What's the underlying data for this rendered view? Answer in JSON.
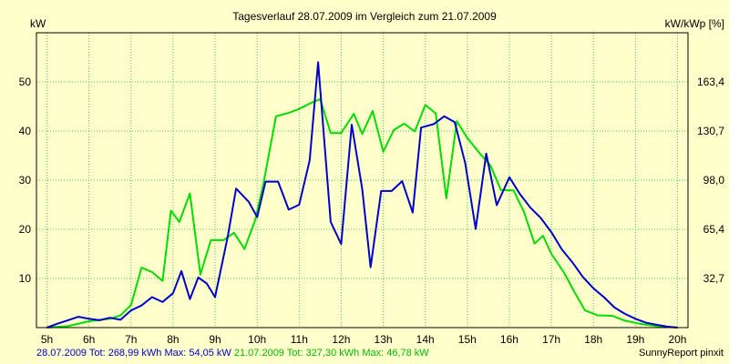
{
  "chart_data": {
    "type": "line",
    "title": "Tagesverlauf 28.07.2009 im Vergleich zum 21.07.2009",
    "ylabel": "kW",
    "y2label": "kW/kWp [%]",
    "ylim": [
      0,
      60
    ],
    "y2lim": [
      0,
      196
    ],
    "xlim": [
      4.75,
      20.25
    ],
    "x_ticks": [
      5,
      6,
      7,
      8,
      9,
      10,
      11,
      12,
      13,
      14,
      15,
      16,
      17,
      18,
      19,
      20
    ],
    "x_tick_labels": [
      "5h",
      "6h",
      "7h",
      "8h",
      "9h",
      "10h",
      "11h",
      "12h",
      "13h",
      "14h",
      "15h",
      "16h",
      "17h",
      "18h",
      "19h",
      "20h"
    ],
    "y_ticks": [
      10,
      20,
      30,
      40,
      50
    ],
    "y_tick_labels": [
      "10",
      "20",
      "30",
      "40",
      "50"
    ],
    "y2_tick_labels": [
      "32,7",
      "65,4",
      "98,0",
      "130,7",
      "163,4"
    ],
    "grid": true,
    "series": [
      {
        "name": "28.07.2009",
        "color": "#0000cc",
        "points": [
          [
            5,
            0
          ],
          [
            5.25,
            0.8
          ],
          [
            5.5,
            1.5
          ],
          [
            5.75,
            2.2
          ],
          [
            6,
            1.8
          ],
          [
            6.25,
            1.5
          ],
          [
            6.5,
            2
          ],
          [
            6.75,
            1.6
          ],
          [
            7,
            3.5
          ],
          [
            7.25,
            4.5
          ],
          [
            7.5,
            6.2
          ],
          [
            7.75,
            5.2
          ],
          [
            8,
            7
          ],
          [
            8.2,
            11.5
          ],
          [
            8.4,
            5.8
          ],
          [
            8.6,
            10.2
          ],
          [
            8.8,
            9
          ],
          [
            9,
            6.2
          ],
          [
            9.3,
            18.5
          ],
          [
            9.5,
            28.3
          ],
          [
            9.8,
            25.6
          ],
          [
            10,
            22.5
          ],
          [
            10.2,
            29.7
          ],
          [
            10.5,
            29.7
          ],
          [
            10.75,
            24
          ],
          [
            11,
            25
          ],
          [
            11.25,
            34
          ],
          [
            11.45,
            54
          ],
          [
            11.75,
            21.5
          ],
          [
            12,
            17
          ],
          [
            12.25,
            41.3
          ],
          [
            12.5,
            28.2
          ],
          [
            12.7,
            12.3
          ],
          [
            12.95,
            27.8
          ],
          [
            13.2,
            27.8
          ],
          [
            13.45,
            29.8
          ],
          [
            13.7,
            23.4
          ],
          [
            13.9,
            40.7
          ],
          [
            14.2,
            41.4
          ],
          [
            14.45,
            43
          ],
          [
            14.7,
            41.8
          ],
          [
            14.95,
            33.5
          ],
          [
            15.2,
            20.1
          ],
          [
            15.45,
            35.4
          ],
          [
            15.7,
            24.9
          ],
          [
            16,
            30.6
          ],
          [
            16.25,
            27.2
          ],
          [
            16.5,
            24.4
          ],
          [
            16.75,
            22.3
          ],
          [
            17,
            19.4
          ],
          [
            17.25,
            15.9
          ],
          [
            17.5,
            13.3
          ],
          [
            17.75,
            10.3
          ],
          [
            18,
            8
          ],
          [
            18.25,
            6.2
          ],
          [
            18.5,
            4.1
          ],
          [
            18.75,
            2.8
          ],
          [
            19,
            1.8
          ],
          [
            19.25,
            1
          ],
          [
            19.5,
            0.6
          ],
          [
            19.75,
            0.2
          ],
          [
            20,
            0
          ]
        ]
      },
      {
        "name": "21.07.2009",
        "color": "#00dd00",
        "points": [
          [
            5,
            0
          ],
          [
            5.5,
            0.3
          ],
          [
            6,
            1.3
          ],
          [
            6.5,
            1.8
          ],
          [
            6.75,
            2.5
          ],
          [
            7,
            4.6
          ],
          [
            7.25,
            12.2
          ],
          [
            7.5,
            11.3
          ],
          [
            7.75,
            9.5
          ],
          [
            7.95,
            23.8
          ],
          [
            8.15,
            21.5
          ],
          [
            8.4,
            27.3
          ],
          [
            8.65,
            10.8
          ],
          [
            8.9,
            17.8
          ],
          [
            9.2,
            17.8
          ],
          [
            9.45,
            19.3
          ],
          [
            9.7,
            16
          ],
          [
            9.95,
            21.8
          ],
          [
            10.15,
            29.3
          ],
          [
            10.45,
            43
          ],
          [
            10.75,
            43.7
          ],
          [
            11,
            44.5
          ],
          [
            11.25,
            45.6
          ],
          [
            11.5,
            46.5
          ],
          [
            11.75,
            39.6
          ],
          [
            12,
            39.6
          ],
          [
            12.3,
            43.5
          ],
          [
            12.5,
            39.4
          ],
          [
            12.75,
            44.1
          ],
          [
            13,
            35.8
          ],
          [
            13.25,
            40.2
          ],
          [
            13.5,
            41.5
          ],
          [
            13.75,
            39.9
          ],
          [
            14,
            45.3
          ],
          [
            14.25,
            43.6
          ],
          [
            14.5,
            26.3
          ],
          [
            14.75,
            42
          ],
          [
            15,
            38.6
          ],
          [
            15.3,
            35.4
          ],
          [
            15.55,
            33
          ],
          [
            15.8,
            28
          ],
          [
            16.1,
            27.9
          ],
          [
            16.35,
            23.5
          ],
          [
            16.6,
            17.1
          ],
          [
            16.8,
            18.7
          ],
          [
            17,
            15
          ],
          [
            17.3,
            11.2
          ],
          [
            17.55,
            7.2
          ],
          [
            17.8,
            3.5
          ],
          [
            18.1,
            2.5
          ],
          [
            18.45,
            2.4
          ],
          [
            18.75,
            1.4
          ],
          [
            19.1,
            0.8
          ],
          [
            19.5,
            0.3
          ],
          [
            20,
            0
          ]
        ]
      }
    ]
  },
  "footer": {
    "s1_text": "28.07.2009 Tot: 268,99 kWh Max: 54,05 kW",
    "s2_text": "21.07.2009 Tot: 327,30 kWh Max: 46,78 kW",
    "s1_color": "#0000cc",
    "s2_color": "#00bb00",
    "credit": "SunnyReport pinxit"
  }
}
